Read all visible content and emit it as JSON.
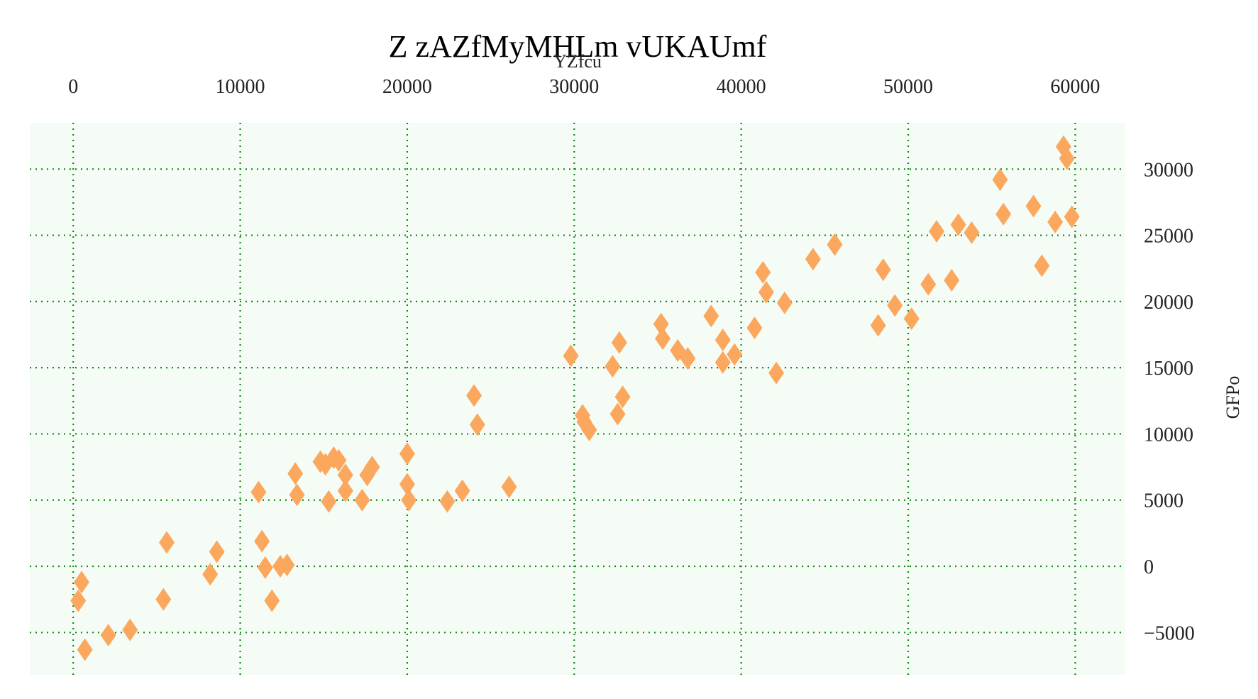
{
  "chart_data": {
    "type": "scatter",
    "title": "Z zAZfMyMHLm vUKAUmf",
    "xlabel": "YZfcu",
    "ylabel": "GFPo",
    "x_axis_position": "top",
    "y_axis_position": "right",
    "xlim": [
      -2600,
      63000
    ],
    "ylim": [
      -8200,
      33500
    ],
    "x_ticks": [
      0,
      10000,
      20000,
      30000,
      40000,
      50000,
      60000
    ],
    "x_tick_labels": [
      "0",
      "10000",
      "20000",
      "30000",
      "40000",
      "50000",
      "60000"
    ],
    "y_ticks": [
      -5000,
      0,
      5000,
      10000,
      15000,
      20000,
      25000,
      30000
    ],
    "y_tick_labels": [
      "−5000",
      "0",
      "5000",
      "10000",
      "15000",
      "20000",
      "25000",
      "30000"
    ],
    "grid": true,
    "colors": {
      "plot_background": "#f5fcf5",
      "grid": "#118811",
      "marker": "#fba85e"
    },
    "marker": "diamond",
    "series": [
      {
        "name": "",
        "points": [
          [
            300,
            -2600
          ],
          [
            500,
            -1200
          ],
          [
            700,
            -6300
          ],
          [
            2100,
            -5200
          ],
          [
            3400,
            -4800
          ],
          [
            5400,
            -2500
          ],
          [
            5600,
            1800
          ],
          [
            8200,
            -600
          ],
          [
            8600,
            1100
          ],
          [
            11100,
            5600
          ],
          [
            11300,
            1900
          ],
          [
            11500,
            -100
          ],
          [
            11900,
            -2600
          ],
          [
            12400,
            0
          ],
          [
            12800,
            100
          ],
          [
            13300,
            7000
          ],
          [
            13400,
            5400
          ],
          [
            14800,
            7900
          ],
          [
            15100,
            7700
          ],
          [
            15300,
            4900
          ],
          [
            15600,
            8200
          ],
          [
            15900,
            8000
          ],
          [
            16300,
            6900
          ],
          [
            16300,
            5700
          ],
          [
            17300,
            5000
          ],
          [
            17600,
            6900
          ],
          [
            17900,
            7500
          ],
          [
            20000,
            8500
          ],
          [
            20000,
            6200
          ],
          [
            20100,
            5000
          ],
          [
            22400,
            4900
          ],
          [
            23300,
            5700
          ],
          [
            24000,
            12900
          ],
          [
            24200,
            10700
          ],
          [
            26100,
            6000
          ],
          [
            29800,
            15900
          ],
          [
            30500,
            11400
          ],
          [
            30600,
            10900
          ],
          [
            30900,
            10300
          ],
          [
            32300,
            15100
          ],
          [
            32600,
            11500
          ],
          [
            32700,
            16900
          ],
          [
            32900,
            12800
          ],
          [
            35200,
            18300
          ],
          [
            35300,
            17200
          ],
          [
            36200,
            16300
          ],
          [
            36800,
            15700
          ],
          [
            38200,
            18900
          ],
          [
            38900,
            17100
          ],
          [
            38900,
            15400
          ],
          [
            39600,
            16000
          ],
          [
            40800,
            18000
          ],
          [
            41300,
            22200
          ],
          [
            41500,
            20700
          ],
          [
            42100,
            14600
          ],
          [
            42600,
            19900
          ],
          [
            44300,
            23200
          ],
          [
            45600,
            24300
          ],
          [
            48200,
            18200
          ],
          [
            48500,
            22400
          ],
          [
            49200,
            19700
          ],
          [
            50200,
            18700
          ],
          [
            51200,
            21300
          ],
          [
            51700,
            25300
          ],
          [
            52600,
            21600
          ],
          [
            53000,
            25800
          ],
          [
            53800,
            25200
          ],
          [
            55500,
            29200
          ],
          [
            55700,
            26600
          ],
          [
            57500,
            27200
          ],
          [
            58000,
            22700
          ],
          [
            58800,
            26000
          ],
          [
            59300,
            31700
          ],
          [
            59500,
            30800
          ],
          [
            59800,
            26400
          ]
        ]
      }
    ]
  }
}
